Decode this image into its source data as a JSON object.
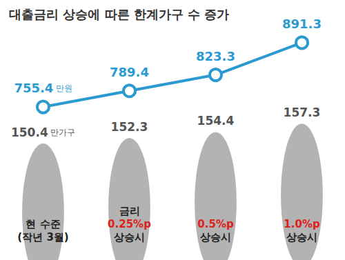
{
  "chart_data": {
    "type": "line",
    "title": "대출금리 상승에 따른 한계가구 수 증가",
    "categories": [
      "현 수준\n(작년 3월)",
      "금리\n0.25%p\n상승시",
      "0.5%p\n상승시",
      "1.0%p\n상승시"
    ],
    "series": [
      {
        "type": "line",
        "color": "#2b9ad1",
        "marker": "circle",
        "line_style": "solid",
        "values": [
          755.4,
          789.4,
          823.3,
          891.3
        ],
        "value_labels": [
          "755.4 만원",
          "789.4",
          "823.3",
          "891.3"
        ]
      },
      {
        "type": "bar",
        "axis": "y2",
        "color": "#b3b3b3",
        "marker": "person",
        "values": [
          150.4,
          152.3,
          154.4,
          157.3
        ],
        "value_labels": [
          "150.4 만가구",
          "152.3",
          "154.4",
          "157.3"
        ]
      }
    ],
    "ylim": [
      700,
      900
    ],
    "yticks": [
      700,
      900
    ],
    "y2lim": [
      110,
      160
    ],
    "y2ticks": [
      110,
      160
    ],
    "tick_labels": false,
    "grid": false,
    "data_labels": true
  }
}
